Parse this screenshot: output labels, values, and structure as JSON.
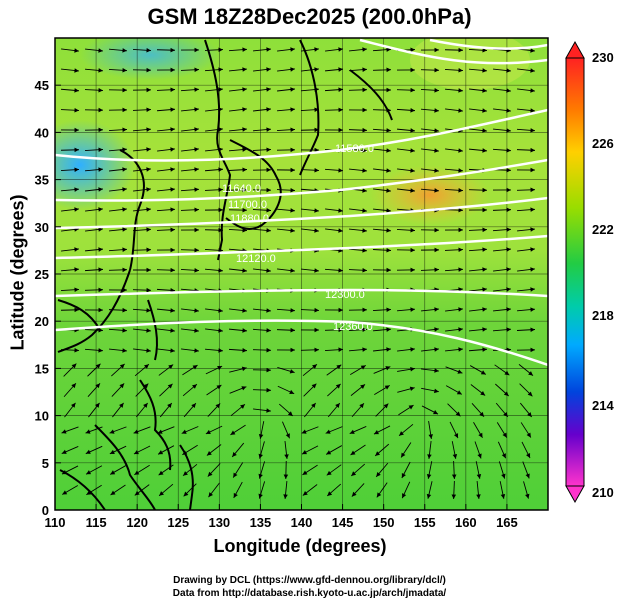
{
  "title": "GSM 18Z28Dec2025 (200.0hPa)",
  "x_axis": {
    "label": "Longitude (degrees)",
    "ticks": [
      "110",
      "115",
      "120",
      "125",
      "130",
      "135",
      "140",
      "145",
      "150",
      "155",
      "160",
      "165"
    ],
    "range": [
      110,
      170
    ]
  },
  "y_axis": {
    "label": "Latitude  (degrees)",
    "ticks": [
      "0",
      "5",
      "10",
      "15",
      "20",
      "25",
      "30",
      "35",
      "40",
      "45"
    ],
    "range": [
      0,
      50
    ]
  },
  "colorbar": {
    "labels": [
      "230",
      "226",
      "222",
      "218",
      "214",
      "210"
    ],
    "range": [
      210,
      230
    ],
    "colors": [
      "#ff33cc",
      "#9900cc",
      "#0000cc",
      "#0066ff",
      "#00ccff",
      "#00cc99",
      "#33cc33",
      "#99dd00",
      "#ffcc00",
      "#ff6600",
      "#ff2222"
    ]
  },
  "contour_labels": [
    {
      "text": "11580.0"
    },
    {
      "text": "11640.0"
    },
    {
      "text": "11700.0"
    },
    {
      "text": "11880.0"
    },
    {
      "text": "12120.0"
    },
    {
      "text": "12300.0"
    },
    {
      "text": "12360.0"
    }
  ],
  "credits": {
    "line1": "Drawing by DCL (https://www.gfd-dennou.org/library/dcl/)",
    "line2": "Data from http://database.rish.kyoto-u.ac.jp/arch/jmadata/"
  }
}
